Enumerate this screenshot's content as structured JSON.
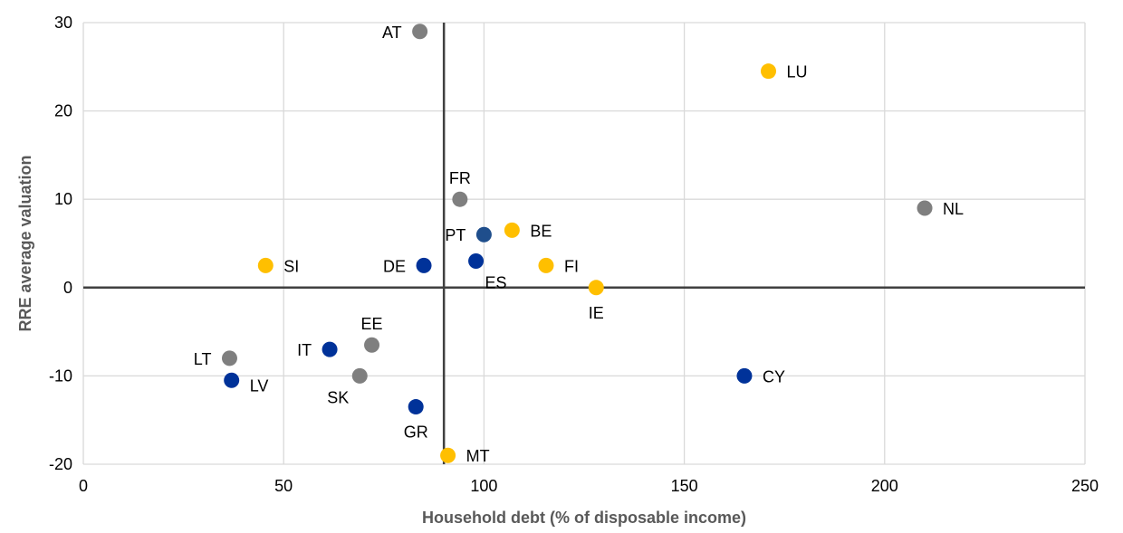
{
  "chart_data": {
    "type": "scatter",
    "title": "",
    "xlabel": "Household debt (% of disposable income)",
    "ylabel": "RRE average valuation",
    "xlim": [
      0,
      250
    ],
    "ylim": [
      -20,
      30
    ],
    "xticks": [
      0,
      50,
      100,
      150,
      200,
      250
    ],
    "yticks": [
      -20,
      -10,
      0,
      10,
      20,
      30
    ],
    "grid": true,
    "reference_lines": {
      "x": 90,
      "y": 0
    },
    "colors": {
      "grey": "#7f7f7f",
      "yellow": "#ffbf00",
      "blue": "#003299",
      "darkblue": "#1f4e8c"
    },
    "points": [
      {
        "label": "AT",
        "x": 84,
        "y": 29,
        "color": "grey",
        "label_pos": "left"
      },
      {
        "label": "LU",
        "x": 171,
        "y": 24.5,
        "color": "yellow",
        "label_pos": "right"
      },
      {
        "label": "FR",
        "x": 94,
        "y": 10,
        "color": "grey",
        "label_pos": "top"
      },
      {
        "label": "NL",
        "x": 210,
        "y": 9,
        "color": "grey",
        "label_pos": "right"
      },
      {
        "label": "PT",
        "x": 100,
        "y": 6,
        "color": "darkblue",
        "label_pos": "left"
      },
      {
        "label": "BE",
        "x": 107,
        "y": 6.5,
        "color": "yellow",
        "label_pos": "right"
      },
      {
        "label": "SI",
        "x": 45.5,
        "y": 2.5,
        "color": "yellow",
        "label_pos": "right"
      },
      {
        "label": "DE",
        "x": 85,
        "y": 2.5,
        "color": "blue",
        "label_pos": "left"
      },
      {
        "label": "ES",
        "x": 98,
        "y": 3,
        "color": "blue",
        "label_pos": "bottom-right"
      },
      {
        "label": "FI",
        "x": 115.5,
        "y": 2.5,
        "color": "yellow",
        "label_pos": "right"
      },
      {
        "label": "IE",
        "x": 128,
        "y": 0,
        "color": "yellow",
        "label_pos": "bottom"
      },
      {
        "label": "EE",
        "x": 72,
        "y": -6.5,
        "color": "grey",
        "label_pos": "top"
      },
      {
        "label": "IT",
        "x": 61.5,
        "y": -7,
        "color": "blue",
        "label_pos": "left"
      },
      {
        "label": "LT",
        "x": 36.5,
        "y": -8,
        "color": "grey",
        "label_pos": "left"
      },
      {
        "label": "SK",
        "x": 69,
        "y": -10,
        "color": "grey",
        "label_pos": "bottom-left"
      },
      {
        "label": "LV",
        "x": 37,
        "y": -10.5,
        "color": "blue",
        "label_pos": "right-low"
      },
      {
        "label": "CY",
        "x": 165,
        "y": -10,
        "color": "blue",
        "label_pos": "right"
      },
      {
        "label": "GR",
        "x": 83,
        "y": -13.5,
        "color": "blue",
        "label_pos": "bottom"
      },
      {
        "label": "MT",
        "x": 91,
        "y": -19,
        "color": "yellow",
        "label_pos": "right"
      }
    ]
  }
}
